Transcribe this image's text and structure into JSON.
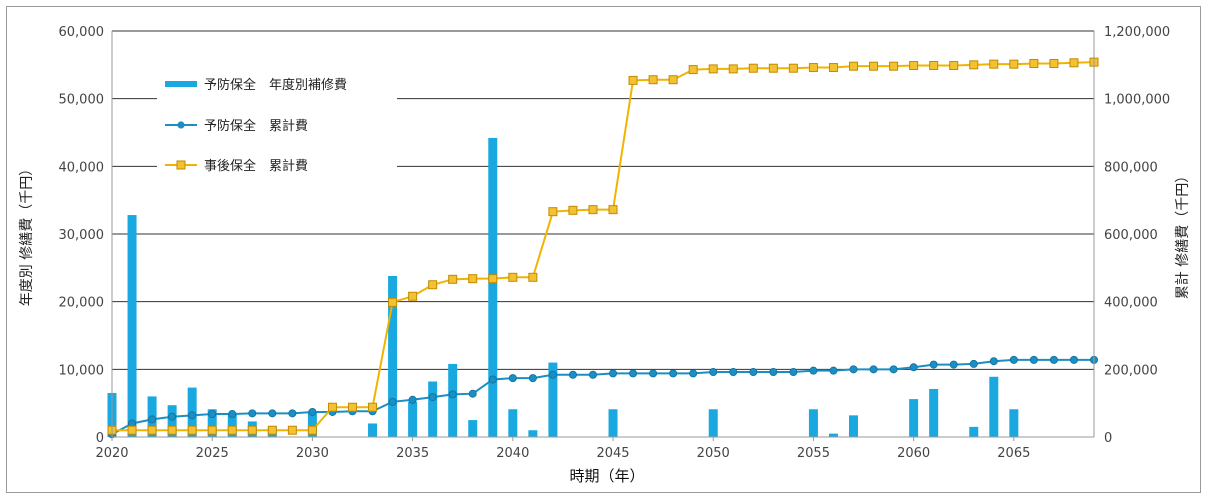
{
  "chart_data": {
    "type": "bar+line",
    "title": "",
    "xlabel": "時期（年）",
    "ylabel_left": "年度別 修繕費（千円）",
    "ylabel_right": "累計 修繕費（千円）",
    "x_ticks": [
      "2020",
      "2025",
      "2030",
      "2035",
      "2040",
      "2045",
      "2050",
      "2055",
      "2060",
      "2065"
    ],
    "y_left_ticks": [
      "0",
      "10,000",
      "20,000",
      "30,000",
      "40,000",
      "50,000",
      "60,000"
    ],
    "y_right_ticks": [
      "0",
      "200,000",
      "400,000",
      "600,000",
      "800,000",
      "1,000,000",
      "1,200,000"
    ],
    "y_left_range": [
      0,
      60000
    ],
    "y_right_range": [
      0,
      1200000
    ],
    "x_range": [
      2020,
      2069
    ],
    "grid": "horizontal",
    "legend_position": "top-left",
    "colors": {
      "bar": "#19a9e0",
      "cum_preventive": "#1b8fc4",
      "cum_corrective": "#f0b400",
      "marker_corrective_fill": "#f3c233",
      "marker_corrective_edge": "#c48a00",
      "grid": "#333333",
      "axis": "#999999"
    },
    "series": [
      {
        "name": "予防保全　年度別補修費",
        "kind": "bar",
        "axis": "left",
        "points": [
          [
            2020,
            6500
          ],
          [
            2021,
            32800
          ],
          [
            2022,
            6000
          ],
          [
            2023,
            4700
          ],
          [
            2024,
            7300
          ],
          [
            2025,
            4100
          ],
          [
            2026,
            3500
          ],
          [
            2027,
            2300
          ],
          [
            2028,
            1400
          ],
          [
            2030,
            3800
          ],
          [
            2033,
            2000
          ],
          [
            2034,
            23800
          ],
          [
            2035,
            5200
          ],
          [
            2036,
            8200
          ],
          [
            2037,
            10800
          ],
          [
            2038,
            2500
          ],
          [
            2039,
            44200
          ],
          [
            2040,
            4100
          ],
          [
            2041,
            1000
          ],
          [
            2042,
            11000
          ],
          [
            2045,
            4100
          ],
          [
            2050,
            4100
          ],
          [
            2055,
            4100
          ],
          [
            2056,
            500
          ],
          [
            2057,
            3200
          ],
          [
            2060,
            5600
          ],
          [
            2061,
            7100
          ],
          [
            2063,
            1500
          ],
          [
            2064,
            8900
          ],
          [
            2065,
            4100
          ]
        ]
      },
      {
        "name": "予防保全　累計費",
        "kind": "line",
        "axis": "right",
        "points": [
          [
            2020,
            8000
          ],
          [
            2021,
            40000
          ],
          [
            2022,
            52000
          ],
          [
            2023,
            60000
          ],
          [
            2024,
            64000
          ],
          [
            2025,
            68000
          ],
          [
            2026,
            68000
          ],
          [
            2027,
            70000
          ],
          [
            2028,
            70000
          ],
          [
            2029,
            70000
          ],
          [
            2030,
            74000
          ],
          [
            2031,
            74000
          ],
          [
            2032,
            76000
          ],
          [
            2033,
            76000
          ],
          [
            2034,
            104000
          ],
          [
            2035,
            110000
          ],
          [
            2036,
            118000
          ],
          [
            2037,
            126000
          ],
          [
            2038,
            128000
          ],
          [
            2039,
            170000
          ],
          [
            2040,
            174000
          ],
          [
            2041,
            174000
          ],
          [
            2042,
            184000
          ],
          [
            2043,
            184000
          ],
          [
            2044,
            184000
          ],
          [
            2045,
            188000
          ],
          [
            2046,
            188000
          ],
          [
            2047,
            188000
          ],
          [
            2048,
            188000
          ],
          [
            2049,
            188000
          ],
          [
            2050,
            192000
          ],
          [
            2051,
            192000
          ],
          [
            2052,
            192000
          ],
          [
            2053,
            192000
          ],
          [
            2054,
            192000
          ],
          [
            2055,
            196000
          ],
          [
            2056,
            196000
          ],
          [
            2057,
            200000
          ],
          [
            2058,
            200000
          ],
          [
            2059,
            200000
          ],
          [
            2060,
            206000
          ],
          [
            2061,
            214000
          ],
          [
            2062,
            214000
          ],
          [
            2063,
            216000
          ],
          [
            2064,
            224000
          ],
          [
            2065,
            228000
          ],
          [
            2066,
            228000
          ],
          [
            2067,
            228000
          ],
          [
            2068,
            228000
          ],
          [
            2069,
            228000
          ]
        ]
      },
      {
        "name": "事後保全　累計費",
        "kind": "line",
        "axis": "right",
        "points": [
          [
            2020,
            20000
          ],
          [
            2021,
            20000
          ],
          [
            2022,
            20000
          ],
          [
            2023,
            20000
          ],
          [
            2024,
            20000
          ],
          [
            2025,
            20000
          ],
          [
            2026,
            20000
          ],
          [
            2027,
            20000
          ],
          [
            2028,
            20000
          ],
          [
            2029,
            20000
          ],
          [
            2030,
            20000
          ],
          [
            2031,
            88000
          ],
          [
            2032,
            88000
          ],
          [
            2033,
            88000
          ],
          [
            2034,
            398000
          ],
          [
            2035,
            416000
          ],
          [
            2036,
            450000
          ],
          [
            2037,
            466000
          ],
          [
            2038,
            468000
          ],
          [
            2039,
            468000
          ],
          [
            2040,
            472000
          ],
          [
            2041,
            472000
          ],
          [
            2042,
            666000
          ],
          [
            2043,
            670000
          ],
          [
            2044,
            672000
          ],
          [
            2045,
            672000
          ],
          [
            2046,
            1054000
          ],
          [
            2047,
            1056000
          ],
          [
            2048,
            1056000
          ],
          [
            2049,
            1086000
          ],
          [
            2050,
            1088000
          ],
          [
            2051,
            1088000
          ],
          [
            2052,
            1090000
          ],
          [
            2053,
            1090000
          ],
          [
            2054,
            1090000
          ],
          [
            2055,
            1092000
          ],
          [
            2056,
            1092000
          ],
          [
            2057,
            1096000
          ],
          [
            2058,
            1096000
          ],
          [
            2059,
            1096000
          ],
          [
            2060,
            1098000
          ],
          [
            2061,
            1098000
          ],
          [
            2062,
            1098000
          ],
          [
            2063,
            1100000
          ],
          [
            2064,
            1102000
          ],
          [
            2065,
            1102000
          ],
          [
            2066,
            1104000
          ],
          [
            2067,
            1104000
          ],
          [
            2068,
            1106000
          ],
          [
            2069,
            1108000
          ]
        ]
      }
    ]
  }
}
